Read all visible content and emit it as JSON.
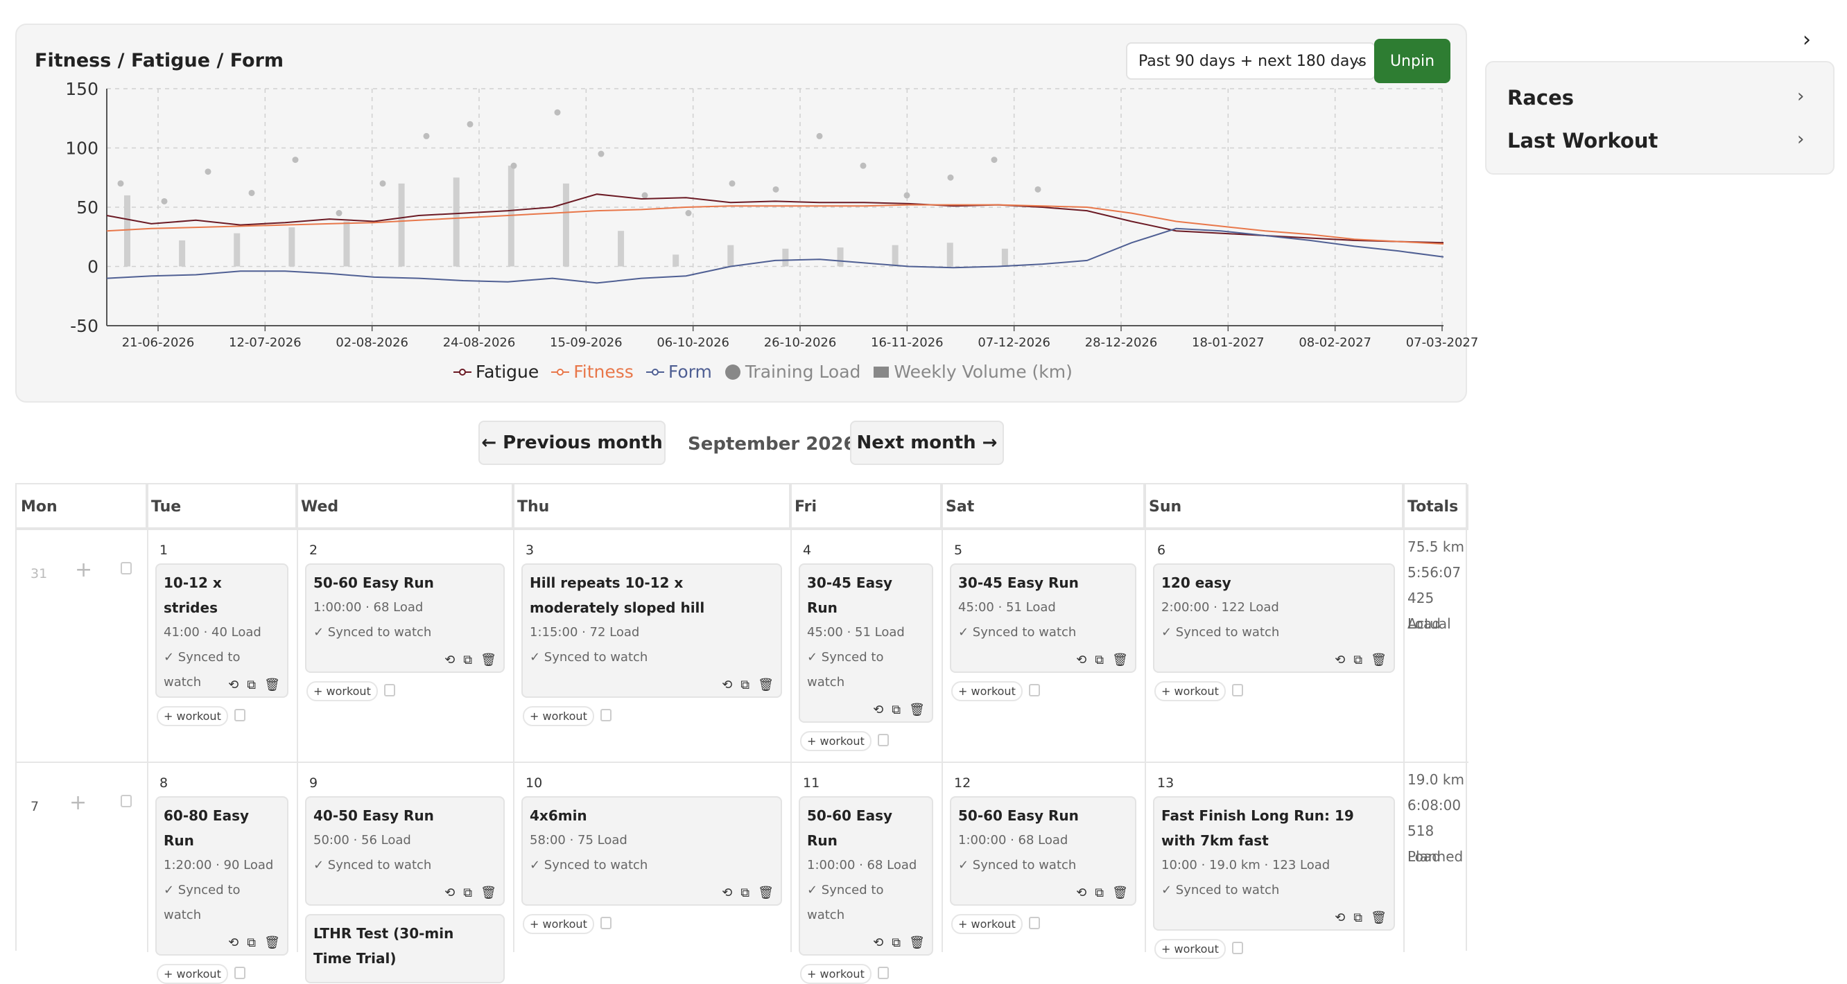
{
  "chart": {
    "title": "Fitness / Fatigue / Form",
    "range_select": "Past 90 days + next 180 days",
    "unpin_label": "Unpin",
    "legend": [
      {
        "label": "Fatigue",
        "color": "#6b1a24"
      },
      {
        "label": "Fitness",
        "color": "#e8774a"
      },
      {
        "label": "Form",
        "color": "#4f5f93"
      },
      {
        "label": "Training Load",
        "color": "#888888"
      },
      {
        "label": "Weekly Volume (km)",
        "color": "#888888"
      }
    ]
  },
  "chart_data": {
    "type": "line",
    "x_ticks": [
      "21-06-2026",
      "12-07-2026",
      "02-08-2026",
      "24-08-2026",
      "15-09-2026",
      "06-10-2026",
      "26-10-2026",
      "16-11-2026",
      "07-12-2026",
      "28-12-2026",
      "18-01-2027",
      "08-02-2027",
      "07-03-2027"
    ],
    "y_ticks": [
      "150",
      "100",
      "50",
      "0",
      "-50"
    ],
    "ylim": [
      -50,
      150
    ],
    "grid": true,
    "legend_position": "bottom",
    "series": [
      {
        "name": "Fatigue",
        "color": "#6b1a24",
        "values": [
          43,
          36,
          39,
          35,
          37,
          40,
          38,
          43,
          45,
          47,
          50,
          61,
          57,
          58,
          54,
          55,
          54,
          54,
          53,
          51,
          52,
          50,
          47,
          38,
          30,
          28,
          26,
          24,
          22,
          21,
          20
        ]
      },
      {
        "name": "Fitness",
        "color": "#e8774a",
        "values": [
          30,
          32,
          33,
          34,
          35,
          36,
          37,
          39,
          41,
          43,
          45,
          47,
          48,
          50,
          51,
          51,
          51,
          51,
          52,
          52,
          52,
          51,
          50,
          45,
          38,
          34,
          30,
          27,
          23,
          21,
          19
        ]
      },
      {
        "name": "Form",
        "color": "#4f5f93",
        "values": [
          -10,
          -8,
          -7,
          -4,
          -4,
          -6,
          -9,
          -10,
          -12,
          -13,
          -10,
          -14,
          -10,
          -8,
          0,
          5,
          6,
          3,
          0,
          -1,
          0,
          2,
          5,
          20,
          32,
          30,
          26,
          22,
          17,
          13,
          8
        ]
      }
    ],
    "training_load_points": [
      [
        0,
        70
      ],
      [
        1,
        55
      ],
      [
        2,
        80
      ],
      [
        3,
        62
      ],
      [
        4,
        90
      ],
      [
        5,
        45
      ],
      [
        6,
        70
      ],
      [
        7,
        110
      ],
      [
        8,
        120
      ],
      [
        9,
        85
      ],
      [
        10,
        130
      ],
      [
        11,
        95
      ],
      [
        12,
        60
      ],
      [
        13,
        45
      ],
      [
        14,
        70
      ],
      [
        15,
        65
      ],
      [
        16,
        110
      ],
      [
        17,
        85
      ],
      [
        18,
        60
      ],
      [
        19,
        75
      ],
      [
        20,
        90
      ],
      [
        21,
        65
      ]
    ],
    "weekly_volume_bars": [
      60,
      22,
      28,
      33,
      38,
      70,
      75,
      85,
      70,
      30,
      10,
      18,
      15,
      16,
      18,
      20,
      15
    ]
  },
  "sidebar": {
    "items": [
      {
        "label": "Races"
      },
      {
        "label": "Last Workout"
      }
    ]
  },
  "nav": {
    "prev": "← Previous month",
    "month": "September 2026",
    "next": "Next month →"
  },
  "calendar": {
    "headers": [
      "Mon",
      "Tue",
      "Wed",
      "Thu",
      "Fri",
      "Sat",
      "Sun",
      "Totals"
    ],
    "week1": {
      "mon_day": "31",
      "days": [
        {
          "num": "1",
          "title": "10-12 x strides",
          "meta": "41:00 · 40 Load",
          "sync": "✓ Synced to watch"
        },
        {
          "num": "2",
          "title": "50-60 Easy Run",
          "meta": "1:00:00 · 68 Load",
          "sync": "✓ Synced to watch"
        },
        {
          "num": "3",
          "title": "Hill repeats 10-12 x moderately sloped hill",
          "meta": "1:15:00 · 72 Load",
          "sync": "✓ Synced to watch"
        },
        {
          "num": "4",
          "title": "30-45 Easy Run",
          "meta": "45:00 · 51 Load",
          "sync": "✓ Synced to watch"
        },
        {
          "num": "5",
          "title": "30-45 Easy Run",
          "meta": "45:00 · 51 Load",
          "sync": "✓ Synced to watch"
        },
        {
          "num": "6",
          "title": "120 easy",
          "meta": "2:00:00 · 122 Load",
          "sync": "✓ Synced to watch"
        }
      ],
      "totals": [
        "75.5 km",
        "5:56:07",
        "425 Load",
        "Actual"
      ]
    },
    "week2": {
      "mon_day": "7",
      "days": [
        {
          "num": "8",
          "title": "60-80 Easy Run",
          "meta": "1:20:00 · 90 Load",
          "sync": "✓ Synced to watch"
        },
        {
          "num": "9",
          "title": "40-50 Easy Run",
          "meta": "50:00 · 56 Load",
          "sync": "✓ Synced to watch",
          "extra_title": "LTHR Test (30-min Time Trial)"
        },
        {
          "num": "10",
          "title": "4x6min",
          "meta": "58:00 · 75 Load",
          "sync": "✓ Synced to watch"
        },
        {
          "num": "11",
          "title": "50-60 Easy Run",
          "meta": "1:00:00 · 68 Load",
          "sync": "✓ Synced to watch"
        },
        {
          "num": "12",
          "title": "50-60 Easy Run",
          "meta": "1:00:00 · 68 Load",
          "sync": "✓ Synced to watch"
        },
        {
          "num": "13",
          "title": "Fast Finish Long Run: 19 with 7km fast",
          "meta": "10:00 · 19.0 km · 123 Load",
          "sync": "✓ Synced to watch"
        }
      ],
      "totals": [
        "19.0 km",
        "6:08:00",
        "518 Load",
        "Planned"
      ]
    },
    "add_workout": "+ workout"
  }
}
